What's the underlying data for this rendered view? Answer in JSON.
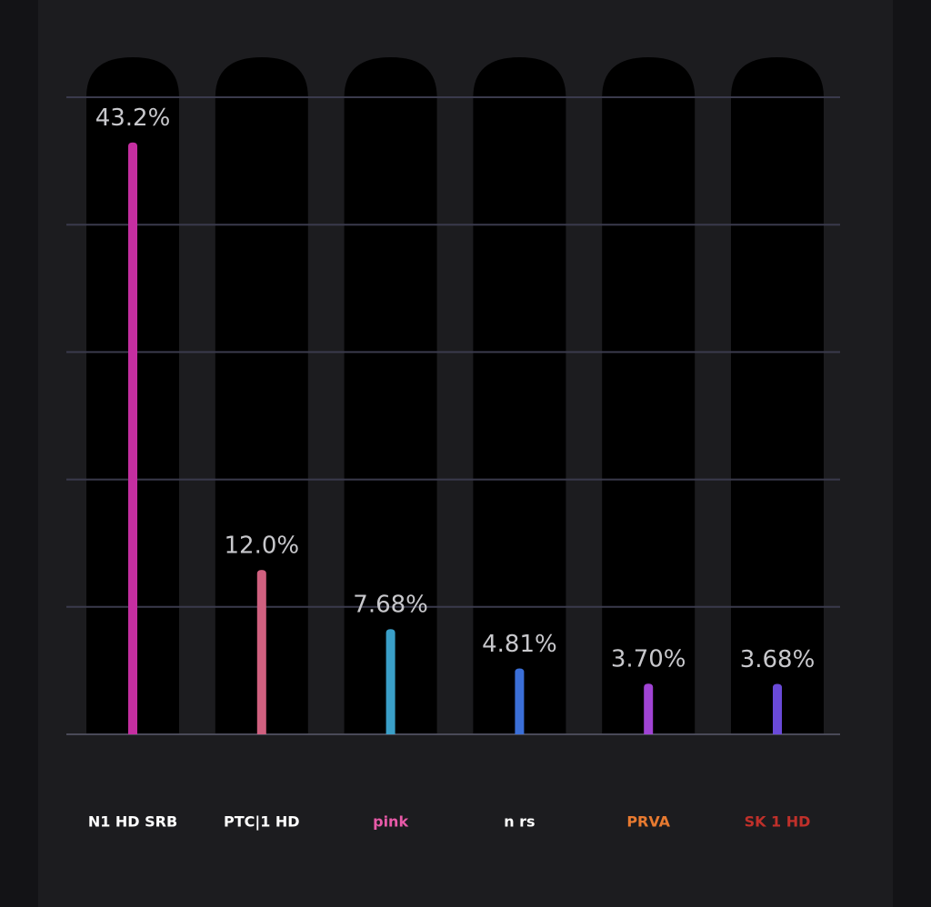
{
  "chart_data": {
    "type": "bar",
    "categories": [
      "N1 HD SRB",
      "PTC|1 HD",
      "pink",
      "n rs",
      "PRVA",
      "SK 1 HD"
    ],
    "values": [
      43.2,
      12.0,
      7.68,
      4.81,
      3.7,
      3.68
    ],
    "value_labels": [
      "43.2%",
      "12.0%",
      "7.68%",
      "4.81%",
      "3.70%",
      "3.68%"
    ],
    "colors": [
      "#c42ea0",
      "#d0607f",
      "#3a9fc8",
      "#3b6fd8",
      "#a043d4",
      "#6a4ad8"
    ],
    "ylim": [
      0,
      46.5
    ],
    "yticks": [
      0,
      9.3,
      18.6,
      27.9,
      37.2,
      46.5
    ],
    "grid": true
  }
}
